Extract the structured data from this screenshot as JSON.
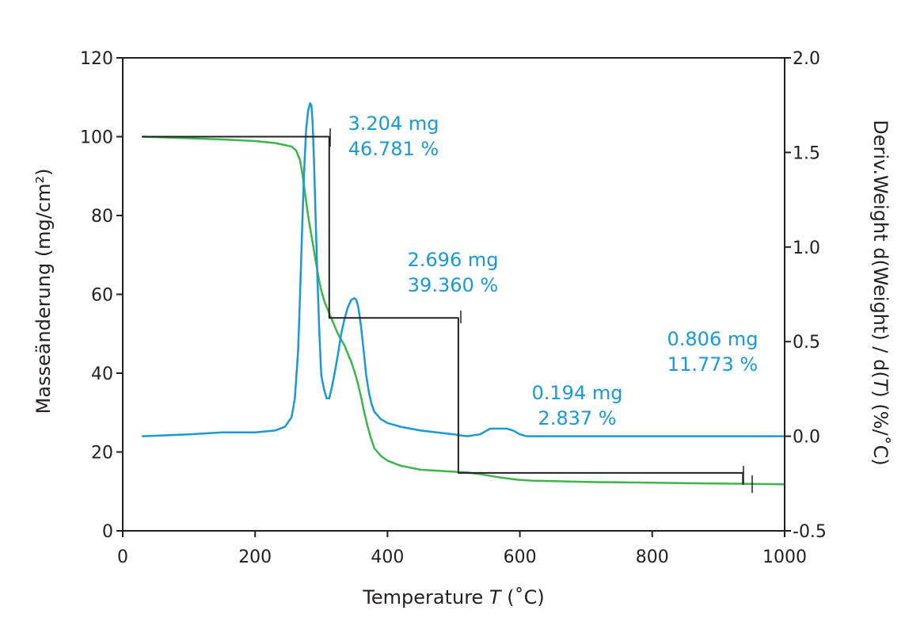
{
  "colors": {
    "mass_curve": "#3db54a",
    "deriv_curve": "#1a99d5",
    "step_line": "#231f20",
    "annotation": "#1a99d5",
    "axes": "#231f20"
  },
  "chart_data": {
    "type": "line",
    "xlabel": {
      "prefix": "Temperature ",
      "var": "T",
      "suffix": " (˚C)"
    },
    "ylabel_left": "Masseänderung (mg/cm²)",
    "ylabel_right": {
      "prefix": "Deriv.Weight d(Weight) / d(",
      "var": "T",
      "suffix": ") (%/˚C)"
    },
    "xlim": [
      0,
      1000
    ],
    "ylim_left": [
      0,
      120
    ],
    "ylim_right": [
      -0.5,
      2.0
    ],
    "x_ticks": [
      "0",
      "200",
      "400",
      "600",
      "800",
      "1000"
    ],
    "x_tick_values": [
      0,
      200,
      400,
      600,
      800,
      1000
    ],
    "y_left_ticks": [
      "0",
      "20",
      "40",
      "60",
      "80",
      "100",
      "120"
    ],
    "y_left_tick_values": [
      0,
      20,
      40,
      60,
      80,
      100,
      120
    ],
    "y_right_ticks": [
      "-0.5",
      "0.0",
      "0.5",
      "1.0",
      "1.5",
      "2.0"
    ],
    "y_right_tick_values": [
      -0.5,
      0.0,
      0.5,
      1.0,
      1.5,
      2.0
    ],
    "grid": false,
    "series": [
      {
        "axis": "left",
        "color_key": "mass_curve",
        "x": [
          30,
          100,
          150,
          200,
          230,
          255,
          262,
          268,
          272,
          276,
          280,
          284,
          288,
          292,
          296,
          300,
          305,
          310,
          315,
          320,
          325,
          330,
          335,
          340,
          345,
          350,
          355,
          360,
          365,
          370,
          375,
          380,
          390,
          400,
          420,
          450,
          480,
          500,
          520,
          540,
          560,
          580,
          600,
          620,
          650,
          700,
          800,
          900,
          1000
        ],
        "y": [
          100,
          99.6,
          99.3,
          98.9,
          98.4,
          97.5,
          96.5,
          94,
          90,
          85,
          80,
          76,
          72,
          68,
          64,
          61,
          58,
          56,
          54,
          52,
          50,
          48.5,
          47,
          45,
          43,
          40.5,
          37.5,
          34,
          30,
          26.5,
          23.5,
          21,
          19,
          17.8,
          16.5,
          15.5,
          15.2,
          15,
          14.8,
          14.4,
          13.8,
          13.3,
          12.9,
          12.7,
          12.6,
          12.4,
          12.2,
          12.0,
          11.8
        ]
      },
      {
        "axis": "right",
        "color_key": "deriv_curve",
        "x": [
          30,
          100,
          150,
          200,
          230,
          245,
          255,
          260,
          265,
          268,
          271,
          274,
          277,
          280,
          283,
          285,
          287,
          289,
          291,
          294,
          297,
          300,
          304,
          308,
          312,
          316,
          320,
          325,
          330,
          335,
          340,
          345,
          350,
          353,
          356,
          360,
          364,
          368,
          372,
          376,
          380,
          390,
          400,
          420,
          450,
          500,
          520,
          540,
          550,
          555,
          560,
          570,
          580,
          590,
          600,
          610,
          650,
          700,
          800,
          900,
          1000
        ],
        "y": [
          0.0,
          0.01,
          0.02,
          0.02,
          0.03,
          0.05,
          0.1,
          0.2,
          0.45,
          0.75,
          1.1,
          1.4,
          1.62,
          1.72,
          1.76,
          1.75,
          1.65,
          1.45,
          1.2,
          0.85,
          0.55,
          0.32,
          0.25,
          0.2,
          0.2,
          0.26,
          0.33,
          0.43,
          0.54,
          0.62,
          0.68,
          0.72,
          0.73,
          0.72,
          0.68,
          0.58,
          0.45,
          0.32,
          0.23,
          0.17,
          0.13,
          0.09,
          0.07,
          0.05,
          0.03,
          0.01,
          0.0,
          0.01,
          0.03,
          0.04,
          0.04,
          0.04,
          0.04,
          0.03,
          0.01,
          0.0,
          0.0,
          0.0,
          0.0,
          0.0,
          0.0
        ]
      },
      {
        "axis": "left",
        "color_key": "step_line",
        "x": [
          30,
          312,
          312,
          507,
          507,
          937,
          937
        ],
        "y": [
          100,
          100,
          54,
          54,
          14.7,
          14.7,
          12.0
        ]
      }
    ],
    "annotations": [
      {
        "lines": [
          "3.204 mg",
          "46.781 %"
        ]
      },
      {
        "lines": [
          "2.696 mg",
          "39.360 %"
        ]
      },
      {
        "lines": [
          "0.194 mg",
          "2.837 %"
        ]
      },
      {
        "lines": [
          "0.806 mg",
          "11.773 %"
        ]
      }
    ]
  }
}
